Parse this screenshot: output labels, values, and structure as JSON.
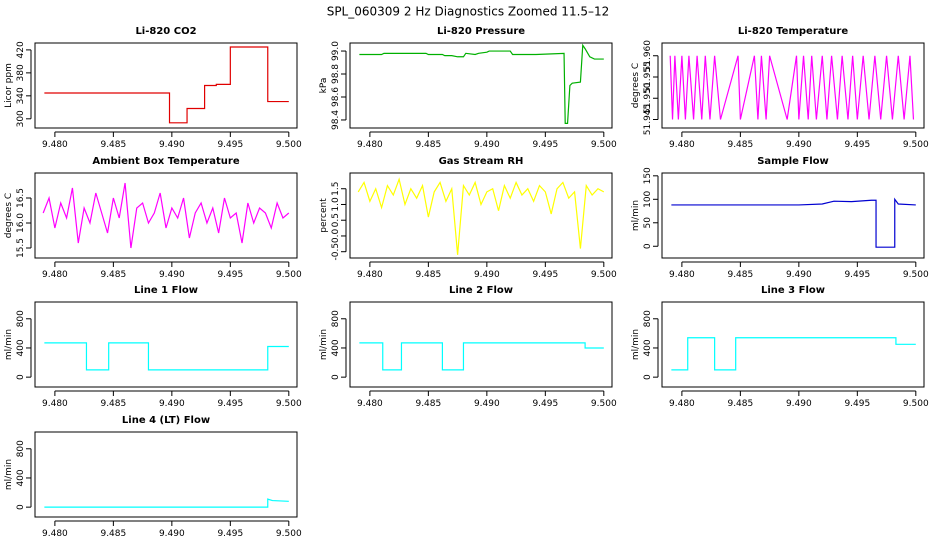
{
  "title": "SPL_060309  2 Hz Diagnostics Zoomed 11.5–12",
  "chart_data": [
    {
      "type": "line",
      "title": "Li-820 CO2",
      "ylabel": "Licor ppm",
      "color": "#e00000",
      "x": [
        9.4791,
        9.4898,
        9.4898,
        9.4913,
        9.4913,
        9.4928,
        9.4928,
        9.4938,
        9.4938,
        9.495,
        9.495,
        9.4982,
        9.4982,
        9.5
      ],
      "values": [
        345,
        345,
        293,
        293,
        318,
        318,
        358,
        358,
        360,
        360,
        425,
        425,
        330,
        330
      ],
      "xlim": [
        9.4783,
        9.5007
      ],
      "xticks": [
        {
          "value": 9.48,
          "label": "9.480"
        },
        9.485,
        {
          "value": 9.49,
          "label": "9.490"
        },
        9.495,
        {
          "value": 9.5,
          "label": "9.500"
        }
      ],
      "ylim": [
        284,
        432
      ],
      "yticks": [
        300,
        340,
        380,
        420
      ]
    },
    {
      "type": "line",
      "title": "Li-820 Pressure",
      "ylabel": "kPa",
      "color": "#00b000",
      "x": [
        9.4791,
        9.481,
        9.4812,
        9.4848,
        9.485,
        9.4862,
        9.4864,
        9.487,
        9.4875,
        9.488,
        9.4882,
        9.489,
        9.4893,
        9.49,
        9.4902,
        9.492,
        9.4922,
        9.494,
        9.4942,
        9.4966,
        9.4967,
        9.4969,
        9.4971,
        9.4973,
        9.498,
        9.4982,
        9.4984,
        9.4988,
        9.4992,
        9.5
      ],
      "values": [
        98.97,
        98.97,
        98.98,
        98.98,
        98.97,
        98.97,
        98.96,
        98.96,
        98.95,
        98.95,
        98.98,
        98.97,
        98.98,
        98.99,
        99.0,
        99.0,
        98.97,
        98.97,
        98.97,
        98.98,
        98.37,
        98.37,
        98.7,
        98.72,
        98.73,
        99.05,
        99.02,
        98.95,
        98.93,
        98.93
      ],
      "xlim": [
        9.4783,
        9.5007
      ],
      "xticks": [
        {
          "value": 9.48,
          "label": "9.480"
        },
        9.485,
        {
          "value": 9.49,
          "label": "9.490"
        },
        9.495,
        {
          "value": 9.5,
          "label": "9.500"
        }
      ],
      "ylim": [
        98.33,
        99.07
      ],
      "yticks": [
        98.4,
        98.6,
        98.8,
        {
          "value": 99,
          "label": "99.0"
        }
      ]
    },
    {
      "type": "line",
      "title": "Li-820 Temperature",
      "ylabel": "degrees C",
      "color": "#ff00ff",
      "x": [
        9.479,
        9.4792,
        9.4794,
        9.4797,
        9.48,
        9.4803,
        9.4806,
        9.481,
        9.4813,
        9.4817,
        9.482,
        9.4824,
        9.4828,
        9.4833,
        9.4848,
        9.485,
        9.4862,
        9.4865,
        9.4868,
        9.4872,
        9.4875,
        9.489,
        9.4898,
        9.49,
        9.4904,
        9.4908,
        9.4911,
        9.4915,
        9.492,
        9.4924,
        9.4928,
        9.4933,
        9.4937,
        9.4942,
        9.4946,
        9.495,
        9.4955,
        9.496,
        9.4965,
        9.497,
        9.4975,
        9.498,
        9.4985,
        9.499,
        9.4995,
        9.4998
      ],
      "values": [
        51.96,
        51.945,
        51.96,
        51.945,
        51.96,
        51.945,
        51.96,
        51.945,
        51.96,
        51.945,
        51.96,
        51.945,
        51.96,
        51.945,
        51.96,
        51.945,
        51.96,
        51.945,
        51.96,
        51.945,
        51.96,
        51.945,
        51.96,
        51.945,
        51.96,
        51.945,
        51.96,
        51.945,
        51.96,
        51.945,
        51.96,
        51.945,
        51.96,
        51.945,
        51.96,
        51.945,
        51.96,
        51.945,
        51.96,
        51.945,
        51.96,
        51.945,
        51.96,
        51.945,
        51.96,
        51.945
      ],
      "xlim": [
        9.4783,
        9.5007
      ],
      "xticks": [
        {
          "value": 9.48,
          "label": "9.480"
        },
        9.485,
        {
          "value": 9.49,
          "label": "9.490"
        },
        9.495,
        {
          "value": 9.5,
          "label": "9.500"
        }
      ],
      "ylim": [
        51.943,
        51.963
      ],
      "yticks": [
        51.945,
        {
          "value": 51.95,
          "label": "51.950"
        },
        51.955,
        {
          "value": 51.96,
          "label": "51.960"
        }
      ]
    },
    {
      "type": "line",
      "title": "Ambient Box Temperature",
      "ylabel": "degrees C",
      "color": "#ff00ff",
      "x": [
        9.479,
        9.4795,
        9.48,
        9.4805,
        9.481,
        9.4815,
        9.482,
        9.4825,
        9.483,
        9.4835,
        9.484,
        9.4845,
        9.485,
        9.4855,
        9.486,
        9.4865,
        9.487,
        9.4875,
        9.488,
        9.4885,
        9.489,
        9.4895,
        9.49,
        9.4905,
        9.491,
        9.4915,
        9.492,
        9.4925,
        9.493,
        9.4935,
        9.494,
        9.4945,
        9.495,
        9.4955,
        9.496,
        9.4965,
        9.497,
        9.4975,
        9.498,
        9.4985,
        9.499,
        9.4995,
        9.5
      ],
      "values": [
        16.2,
        16.5,
        15.9,
        16.4,
        16.1,
        16.7,
        15.6,
        16.3,
        16.0,
        16.6,
        16.2,
        15.8,
        16.5,
        16.1,
        16.8,
        15.5,
        16.3,
        16.4,
        16.0,
        16.2,
        16.6,
        15.9,
        16.3,
        16.1,
        16.5,
        15.7,
        16.2,
        16.4,
        16.0,
        16.3,
        15.8,
        16.5,
        16.1,
        16.2,
        15.6,
        16.4,
        16.0,
        16.3,
        16.2,
        15.9,
        16.4,
        16.1,
        16.2
      ],
      "xlim": [
        9.4783,
        9.5007
      ],
      "xticks": [
        {
          "value": 9.48,
          "label": "9.480"
        },
        9.485,
        {
          "value": 9.49,
          "label": "9.490"
        },
        9.495,
        {
          "value": 9.5,
          "label": "9.500"
        }
      ],
      "ylim": [
        15.3,
        17.0
      ],
      "yticks": [
        15.5,
        {
          "value": 16,
          "label": "16.0"
        },
        16.5
      ]
    },
    {
      "type": "line",
      "title": "Gas Stream RH",
      "ylabel": "percent",
      "color": "#ffff00",
      "x": [
        9.479,
        9.4795,
        9.48,
        9.4805,
        9.481,
        9.4815,
        9.482,
        9.4825,
        9.483,
        9.4835,
        9.484,
        9.4845,
        9.485,
        9.4855,
        9.486,
        9.4865,
        9.487,
        9.4875,
        9.488,
        9.4885,
        9.489,
        9.4895,
        9.49,
        9.4905,
        9.491,
        9.4915,
        9.492,
        9.4925,
        9.493,
        9.4935,
        9.494,
        9.4945,
        9.495,
        9.4955,
        9.496,
        9.4965,
        9.497,
        9.4975,
        9.498,
        9.4985,
        9.499,
        9.4995,
        9.5
      ],
      "values": [
        1.4,
        1.7,
        1.1,
        1.5,
        0.9,
        1.6,
        1.3,
        1.8,
        1.0,
        1.5,
        1.2,
        1.6,
        0.6,
        1.4,
        1.7,
        1.1,
        1.5,
        -0.6,
        1.6,
        1.3,
        1.7,
        1.0,
        1.4,
        1.5,
        0.8,
        1.6,
        1.2,
        1.7,
        1.3,
        1.5,
        1.1,
        1.6,
        1.4,
        0.7,
        1.5,
        1.7,
        1.2,
        1.4,
        -0.4,
        1.6,
        1.3,
        1.5,
        1.4
      ],
      "xlim": [
        9.4783,
        9.5007
      ],
      "xticks": [
        {
          "value": 9.48,
          "label": "9.480"
        },
        9.485,
        {
          "value": 9.49,
          "label": "9.490"
        },
        9.495,
        {
          "value": 9.5,
          "label": "9.500"
        }
      ],
      "ylim": [
        -0.7,
        2.0
      ],
      "yticks": [
        -0.5,
        {
          "value": 0,
          "label": "0.0"
        },
        0.5,
        {
          "value": 1,
          "label": "1.0"
        },
        1.5
      ]
    },
    {
      "type": "line",
      "title": "Sample Flow",
      "ylabel": "ml/min",
      "color": "#0000d0",
      "x": [
        9.4791,
        9.49,
        9.492,
        9.493,
        9.4945,
        9.4962,
        9.4966,
        9.4966,
        9.4982,
        9.4982,
        9.4985,
        9.5
      ],
      "values": [
        88,
        88,
        90,
        96,
        95,
        98,
        98,
        -2,
        -2,
        100,
        90,
        88
      ],
      "xlim": [
        9.4783,
        9.5007
      ],
      "xticks": [
        {
          "value": 9.48,
          "label": "9.480"
        },
        9.485,
        {
          "value": 9.49,
          "label": "9.490"
        },
        9.495,
        {
          "value": 9.5,
          "label": "9.500"
        }
      ],
      "ylim": [
        -25,
        156
      ],
      "yticks": [
        0,
        50,
        100,
        150
      ]
    },
    {
      "type": "line",
      "title": "Line 1 Flow",
      "ylabel": "ml/min",
      "color": "#00ffff",
      "x": [
        9.4791,
        9.4827,
        9.4827,
        9.4846,
        9.4846,
        9.488,
        9.488,
        9.4982,
        9.4982,
        9.5
      ],
      "values": [
        470,
        470,
        100,
        100,
        470,
        470,
        100,
        100,
        420,
        420
      ],
      "xlim": [
        9.4783,
        9.5007
      ],
      "xticks": [
        {
          "value": 9.48,
          "label": "9.480"
        },
        9.485,
        {
          "value": 9.49,
          "label": "9.490"
        },
        9.495,
        {
          "value": 9.5,
          "label": "9.500"
        }
      ],
      "ylim": [
        -135,
        1030
      ],
      "yticks": [
        0,
        400,
        800
      ]
    },
    {
      "type": "line",
      "title": "Line 2 Flow",
      "ylabel": "ml/min",
      "color": "#00ffff",
      "x": [
        9.4791,
        9.4811,
        9.4811,
        9.4827,
        9.4827,
        9.4862,
        9.4862,
        9.488,
        9.488,
        9.4984,
        9.4984,
        9.5
      ],
      "values": [
        470,
        470,
        100,
        100,
        470,
        470,
        100,
        100,
        470,
        470,
        400,
        400
      ],
      "xlim": [
        9.4783,
        9.5007
      ],
      "xticks": [
        {
          "value": 9.48,
          "label": "9.480"
        },
        9.485,
        {
          "value": 9.49,
          "label": "9.490"
        },
        9.495,
        {
          "value": 9.5,
          "label": "9.500"
        }
      ],
      "ylim": [
        -135,
        1030
      ],
      "yticks": [
        0,
        400,
        800
      ]
    },
    {
      "type": "line",
      "title": "Line 3 Flow",
      "ylabel": "ml/min",
      "color": "#00ffff",
      "x": [
        9.4791,
        9.4805,
        9.4805,
        9.4828,
        9.4828,
        9.4846,
        9.4846,
        9.4983,
        9.4983,
        9.5
      ],
      "values": [
        100,
        100,
        540,
        540,
        100,
        100,
        540,
        540,
        450,
        450
      ],
      "xlim": [
        9.4783,
        9.5007
      ],
      "xticks": [
        {
          "value": 9.48,
          "label": "9.480"
        },
        9.485,
        {
          "value": 9.49,
          "label": "9.490"
        },
        9.495,
        {
          "value": 9.5,
          "label": "9.500"
        }
      ],
      "ylim": [
        -135,
        1030
      ],
      "yticks": [
        0,
        400,
        800
      ]
    },
    {
      "type": "line",
      "title": "Line 4 (LT) Flow",
      "ylabel": "ml/min",
      "color": "#00ffff",
      "x": [
        9.4791,
        9.4982,
        9.4982,
        9.4986,
        9.5
      ],
      "values": [
        0,
        0,
        110,
        90,
        80
      ],
      "xlim": [
        9.4783,
        9.5007
      ],
      "xticks": [
        {
          "value": 9.48,
          "label": "9.480"
        },
        9.485,
        {
          "value": 9.49,
          "label": "9.490"
        },
        9.495,
        {
          "value": 9.5,
          "label": "9.500"
        }
      ],
      "ylim": [
        -135,
        1030
      ],
      "yticks": [
        0,
        400,
        800
      ]
    }
  ]
}
